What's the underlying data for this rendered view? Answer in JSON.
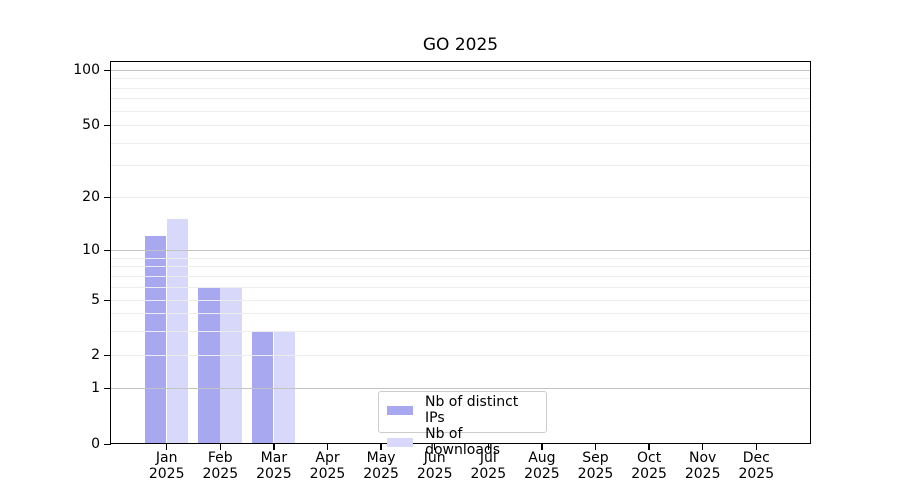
{
  "chart_data": {
    "type": "bar",
    "title": "GO 2025",
    "x_months": [
      "Jan",
      "Feb",
      "Mar",
      "Apr",
      "May",
      "Jun",
      "Jul",
      "Aug",
      "Sep",
      "Oct",
      "Nov",
      "Dec"
    ],
    "x_year": "2025",
    "series": [
      {
        "name": "Nb of distinct IPs",
        "color": "#a8a8f0",
        "values": [
          12,
          6,
          3,
          0,
          0,
          0,
          0,
          0,
          0,
          0,
          0,
          0
        ]
      },
      {
        "name": "Nb of downloads",
        "color": "#d8d8fa",
        "values": [
          15,
          6,
          3,
          0,
          0,
          0,
          0,
          0,
          0,
          0,
          0,
          0
        ]
      }
    ],
    "y_scale": "symlog",
    "ylim": [
      0,
      100
    ],
    "y_ticks": [
      100,
      50,
      20,
      10,
      5,
      2,
      1,
      0
    ],
    "y_major_gridlines": [
      1,
      10,
      100
    ],
    "y_minor_gridlines": [
      2,
      3,
      4,
      5,
      6,
      7,
      8,
      9,
      20,
      30,
      40,
      50,
      60,
      70,
      80,
      90
    ],
    "grid": true,
    "legend_position": "lower center"
  }
}
